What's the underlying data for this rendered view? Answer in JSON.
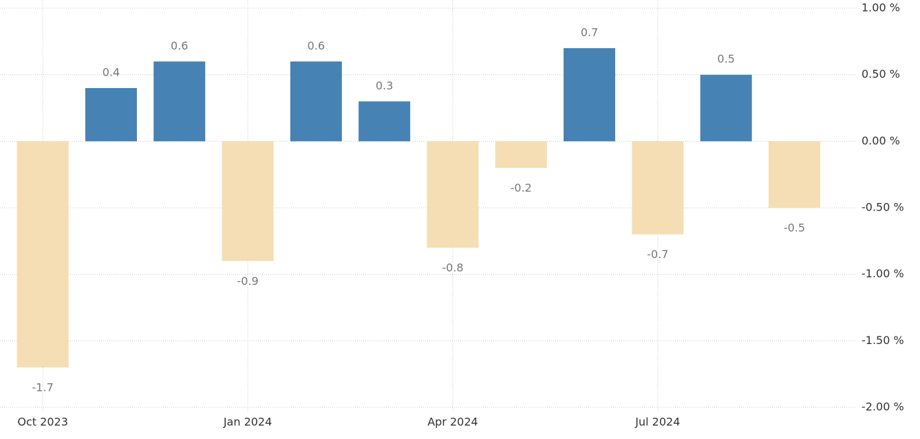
{
  "chart_data": {
    "type": "bar",
    "categories": [
      "Oct 2023",
      null,
      null,
      "Jan 2024",
      null,
      null,
      "Apr 2024",
      null,
      null,
      "Jul 2024",
      null,
      null
    ],
    "values": [
      -1.7,
      0.4,
      0.6,
      -0.9,
      0.6,
      0.3,
      -0.8,
      -0.2,
      0.7,
      -0.7,
      0.5,
      -0.5
    ],
    "color": "#4682b4",
    "negative_color": "#f5deb3",
    "ylim": [
      -2,
      1
    ],
    "yticks": [
      {
        "value": 1,
        "label": "1.00 %"
      },
      {
        "value": 0.5,
        "label": "0.50 %"
      },
      {
        "value": 0,
        "label": "0.00 %"
      },
      {
        "value": -0.5,
        "label": "-0.50 %"
      },
      {
        "value": -1,
        "label": "-1.00 %"
      },
      {
        "value": -1.5,
        "label": "-1.50 %"
      },
      {
        "value": -2,
        "label": "-2.00 %"
      }
    ],
    "grid": true
  }
}
